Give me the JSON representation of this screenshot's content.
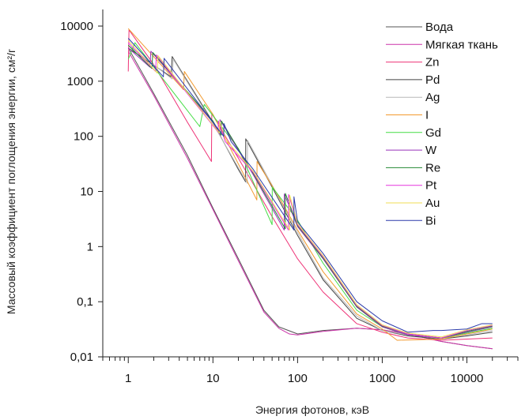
{
  "chart_data": {
    "type": "line",
    "xlabel": "Энергия фотонов, кэВ",
    "ylabel": "Массовый коэффициент поглощения энергии, см²/г",
    "x_scale": "log",
    "y_scale": "log",
    "xlim": [
      0.5,
      40000
    ],
    "ylim": [
      0.01,
      20000
    ],
    "x_ticks": [
      {
        "value": 1,
        "label": "1"
      },
      {
        "value": 10,
        "label": "10"
      },
      {
        "value": 100,
        "label": "100"
      },
      {
        "value": 1000,
        "label": "1000"
      },
      {
        "value": 10000,
        "label": "10000"
      }
    ],
    "y_ticks": [
      {
        "value": 10000,
        "label": "10000"
      },
      {
        "value": 1000,
        "label": "1000"
      },
      {
        "value": 100,
        "label": "100"
      },
      {
        "value": 10,
        "label": "10"
      },
      {
        "value": 1,
        "label": "1"
      },
      {
        "value": 0.1,
        "label": "0,1"
      },
      {
        "value": 0.01,
        "label": "0,01"
      }
    ],
    "grid": false,
    "legend_position": "top-right",
    "series": [
      {
        "name": "Вода",
        "color": "#555555",
        "points": [
          [
            1,
            4000
          ],
          [
            2,
            600
          ],
          [
            5,
            45
          ],
          [
            10,
            5
          ],
          [
            20,
            0.6
          ],
          [
            40,
            0.07
          ],
          [
            60,
            0.035
          ],
          [
            100,
            0.026
          ],
          [
            200,
            0.03
          ],
          [
            500,
            0.033
          ],
          [
            1000,
            0.031
          ],
          [
            2000,
            0.026
          ],
          [
            5000,
            0.019
          ],
          [
            10000,
            0.016
          ],
          [
            20000,
            0.014
          ]
        ]
      },
      {
        "name": "Мягкая ткань",
        "color": "#cc33aa",
        "points": [
          [
            1,
            3500
          ],
          [
            2,
            550
          ],
          [
            5,
            40
          ],
          [
            9,
            6.5
          ],
          [
            20,
            0.55
          ],
          [
            40,
            0.065
          ],
          [
            60,
            0.033
          ],
          [
            80,
            0.026
          ],
          [
            100,
            0.025
          ],
          [
            200,
            0.029
          ],
          [
            500,
            0.033
          ],
          [
            1000,
            0.031
          ],
          [
            2000,
            0.026
          ],
          [
            5000,
            0.019
          ],
          [
            10000,
            0.016
          ],
          [
            20000,
            0.014
          ]
        ]
      },
      {
        "name": "Zn",
        "color": "#ee3377",
        "points": [
          [
            1,
            1500
          ],
          [
            1.02,
            8500
          ],
          [
            2,
            2000
          ],
          [
            5,
            180
          ],
          [
            9.6,
            35
          ],
          [
            9.7,
            260
          ],
          [
            20,
            40
          ],
          [
            50,
            3.5
          ],
          [
            100,
            0.6
          ],
          [
            200,
            0.15
          ],
          [
            500,
            0.04
          ],
          [
            1000,
            0.028
          ],
          [
            2000,
            0.022
          ],
          [
            5000,
            0.02
          ],
          [
            10000,
            0.021
          ],
          [
            20000,
            0.022
          ]
        ]
      },
      {
        "name": "Pd",
        "color": "#444444",
        "points": [
          [
            1,
            4000
          ],
          [
            3.2,
            1200
          ],
          [
            3.3,
            2800
          ],
          [
            10,
            180
          ],
          [
            20,
            25
          ],
          [
            24.3,
            15
          ],
          [
            24.4,
            90
          ],
          [
            50,
            12
          ],
          [
            100,
            1.6
          ],
          [
            200,
            0.25
          ],
          [
            500,
            0.05
          ],
          [
            1000,
            0.03
          ],
          [
            2000,
            0.024
          ],
          [
            5000,
            0.021
          ],
          [
            10000,
            0.024
          ],
          [
            20000,
            0.028
          ]
        ]
      },
      {
        "name": "Ag",
        "color": "#b8b8b8",
        "points": [
          [
            1,
            4500
          ],
          [
            3.3,
            1100
          ],
          [
            3.4,
            2500
          ],
          [
            10,
            170
          ],
          [
            25.5,
            14
          ],
          [
            25.6,
            85
          ],
          [
            50,
            13
          ],
          [
            100,
            1.8
          ],
          [
            200,
            0.27
          ],
          [
            500,
            0.055
          ],
          [
            1000,
            0.03
          ],
          [
            2000,
            0.025
          ],
          [
            5000,
            0.022
          ],
          [
            10000,
            0.025
          ],
          [
            20000,
            0.03
          ]
        ]
      },
      {
        "name": "I",
        "color": "#f29a2e",
        "points": [
          [
            1,
            9000
          ],
          [
            4.5,
            700
          ],
          [
            4.6,
            1500
          ],
          [
            10,
            250
          ],
          [
            33,
            7
          ],
          [
            33.2,
            35
          ],
          [
            60,
            8
          ],
          [
            100,
            2
          ],
          [
            200,
            0.35
          ],
          [
            500,
            0.06
          ],
          [
            1000,
            0.032
          ],
          [
            1500,
            0.02
          ],
          [
            5000,
            0.021
          ],
          [
            10000,
            0.026
          ],
          [
            20000,
            0.032
          ]
        ]
      },
      {
        "name": "Gd",
        "color": "#44dd44",
        "points": [
          [
            1,
            2500
          ],
          [
            1.2,
            5000
          ],
          [
            7,
            150
          ],
          [
            7.9,
            380
          ],
          [
            20,
            60
          ],
          [
            50,
            2.5
          ],
          [
            50.2,
            12
          ],
          [
            100,
            3
          ],
          [
            200,
            0.5
          ],
          [
            500,
            0.07
          ],
          [
            1000,
            0.035
          ],
          [
            2000,
            0.025
          ],
          [
            5000,
            0.022
          ],
          [
            10000,
            0.027
          ],
          [
            20000,
            0.033
          ]
        ]
      },
      {
        "name": "W",
        "color": "#9933bb",
        "points": [
          [
            1,
            4000
          ],
          [
            1.8,
            1800
          ],
          [
            1.85,
            3500
          ],
          [
            10,
            180
          ],
          [
            12,
            110
          ],
          [
            12.1,
            200
          ],
          [
            30,
            20
          ],
          [
            69.5,
            2
          ],
          [
            69.6,
            9
          ],
          [
            100,
            2.3
          ],
          [
            200,
            0.6
          ],
          [
            500,
            0.08
          ],
          [
            1000,
            0.035
          ],
          [
            2000,
            0.025
          ],
          [
            5000,
            0.022
          ],
          [
            10000,
            0.028
          ],
          [
            20000,
            0.035
          ]
        ]
      },
      {
        "name": "Re",
        "color": "#228833",
        "points": [
          [
            1,
            4500
          ],
          [
            1.9,
            1700
          ],
          [
            1.95,
            3300
          ],
          [
            10,
            190
          ],
          [
            12.5,
            105
          ],
          [
            12.6,
            190
          ],
          [
            30,
            21
          ],
          [
            71.6,
            2.1
          ],
          [
            71.7,
            9.2
          ],
          [
            100,
            2.4
          ],
          [
            200,
            0.62
          ],
          [
            500,
            0.082
          ],
          [
            1000,
            0.036
          ],
          [
            2000,
            0.026
          ],
          [
            5000,
            0.022
          ],
          [
            10000,
            0.029
          ],
          [
            20000,
            0.036
          ]
        ]
      },
      {
        "name": "Pt",
        "color": "#e633dd",
        "points": [
          [
            1,
            5000
          ],
          [
            2.1,
            1500
          ],
          [
            2.15,
            3000
          ],
          [
            11.5,
            120
          ],
          [
            11.6,
            190
          ],
          [
            14,
            80
          ],
          [
            30,
            22
          ],
          [
            78,
            2
          ],
          [
            78.4,
            8.8
          ],
          [
            100,
            2.5
          ],
          [
            200,
            0.65
          ],
          [
            500,
            0.085
          ],
          [
            1000,
            0.037
          ],
          [
            2000,
            0.026
          ],
          [
            5000,
            0.022
          ],
          [
            10000,
            0.03
          ],
          [
            20000,
            0.037
          ]
        ]
      },
      {
        "name": "Au",
        "color": "#f0dd55",
        "points": [
          [
            1,
            5500
          ],
          [
            2.2,
            1400
          ],
          [
            2.25,
            2900
          ],
          [
            11.9,
            115
          ],
          [
            12,
            185
          ],
          [
            14.3,
            85
          ],
          [
            30,
            23
          ],
          [
            80.7,
            2
          ],
          [
            80.8,
            8.5
          ],
          [
            100,
            2.6
          ],
          [
            200,
            0.68
          ],
          [
            500,
            0.088
          ],
          [
            1000,
            0.038
          ],
          [
            2000,
            0.027
          ],
          [
            5000,
            0.023
          ],
          [
            10000,
            0.031
          ],
          [
            20000,
            0.038
          ]
        ]
      },
      {
        "name": "Bi",
        "color": "#2b3aaa",
        "points": [
          [
            1,
            6000
          ],
          [
            2.6,
            1200
          ],
          [
            2.65,
            2600
          ],
          [
            13.4,
            100
          ],
          [
            13.5,
            170
          ],
          [
            16.4,
            80
          ],
          [
            30,
            25
          ],
          [
            90.5,
            2
          ],
          [
            90.6,
            8
          ],
          [
            100,
            2.8
          ],
          [
            200,
            0.75
          ],
          [
            500,
            0.1
          ],
          [
            1000,
            0.045
          ],
          [
            2000,
            0.028
          ],
          [
            4000,
            0.03
          ],
          [
            5000,
            0.03
          ],
          [
            10000,
            0.032
          ],
          [
            15000,
            0.04
          ],
          [
            20000,
            0.04
          ]
        ]
      }
    ]
  }
}
